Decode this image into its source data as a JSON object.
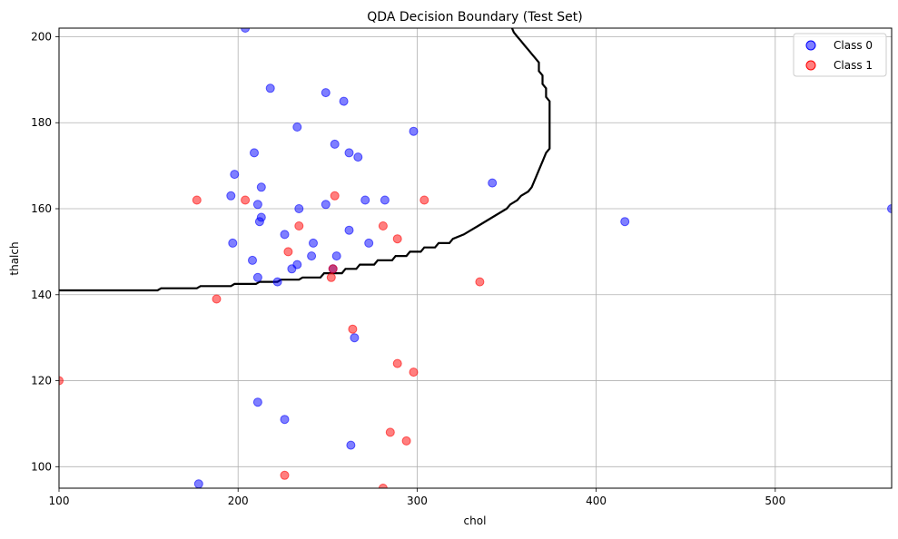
{
  "chart_data": {
    "type": "scatter",
    "title": "QDA Decision Boundary (Test Set)",
    "xlabel": "chol",
    "ylabel": "thalch",
    "xlim": [
      100,
      565
    ],
    "ylim": [
      95,
      202
    ],
    "xticks": [
      100,
      200,
      300,
      400,
      500
    ],
    "yticks": [
      100,
      120,
      140,
      160,
      180,
      200
    ],
    "grid": true,
    "legend_position": "top-right",
    "colors": {
      "class0": "#0000ff",
      "class1": "#ff0000",
      "boundary": "#000000",
      "grid": "#b0b0b0"
    },
    "series": [
      {
        "name": "Class 0",
        "color": "#0000ff",
        "points": [
          [
            204,
            202
          ],
          [
            218,
            188
          ],
          [
            249,
            187
          ],
          [
            259,
            185
          ],
          [
            233,
            179
          ],
          [
            298,
            178
          ],
          [
            254,
            175
          ],
          [
            209,
            173
          ],
          [
            262,
            173
          ],
          [
            267,
            172
          ],
          [
            198,
            168
          ],
          [
            342,
            166
          ],
          [
            213,
            165
          ],
          [
            196,
            163
          ],
          [
            271,
            162
          ],
          [
            282,
            162
          ],
          [
            211,
            161
          ],
          [
            249,
            161
          ],
          [
            234,
            160
          ],
          [
            565,
            160
          ],
          [
            213,
            158
          ],
          [
            212,
            157
          ],
          [
            416,
            157
          ],
          [
            262,
            155
          ],
          [
            226,
            154
          ],
          [
            197,
            152
          ],
          [
            242,
            152
          ],
          [
            273,
            152
          ],
          [
            241,
            149
          ],
          [
            255,
            149
          ],
          [
            208,
            148
          ],
          [
            233,
            147
          ],
          [
            230,
            146
          ],
          [
            253,
            146
          ],
          [
            211,
            144
          ],
          [
            222,
            143
          ],
          [
            265,
            130
          ],
          [
            211,
            115
          ],
          [
            226,
            111
          ],
          [
            263,
            105
          ],
          [
            178,
            96
          ]
        ]
      },
      {
        "name": "Class 1",
        "color": "#ff0000",
        "points": [
          [
            177,
            162
          ],
          [
            204,
            162
          ],
          [
            254,
            163
          ],
          [
            304,
            162
          ],
          [
            234,
            156
          ],
          [
            281,
            156
          ],
          [
            289,
            153
          ],
          [
            228,
            150
          ],
          [
            253,
            146
          ],
          [
            252,
            144
          ],
          [
            335,
            143
          ],
          [
            188,
            139
          ],
          [
            264,
            132
          ],
          [
            100,
            120
          ],
          [
            289,
            124
          ],
          [
            298,
            122
          ],
          [
            285,
            108
          ],
          [
            294,
            106
          ],
          [
            226,
            98
          ],
          [
            281,
            95
          ]
        ]
      }
    ],
    "decision_boundary": [
      [
        100,
        141
      ],
      [
        155,
        141
      ],
      [
        157,
        141.5
      ],
      [
        177,
        141.5
      ],
      [
        179,
        142
      ],
      [
        196,
        142
      ],
      [
        198,
        142.5
      ],
      [
        210,
        142.5
      ],
      [
        212,
        143
      ],
      [
        222,
        143
      ],
      [
        224,
        143.5
      ],
      [
        234,
        143.5
      ],
      [
        236,
        144
      ],
      [
        246,
        144
      ],
      [
        248,
        145
      ],
      [
        258,
        145
      ],
      [
        260,
        146
      ],
      [
        266,
        146
      ],
      [
        268,
        147
      ],
      [
        276,
        147
      ],
      [
        278,
        148
      ],
      [
        286,
        148
      ],
      [
        288,
        149
      ],
      [
        294,
        149
      ],
      [
        296,
        150
      ],
      [
        302,
        150
      ],
      [
        304,
        151
      ],
      [
        310,
        151
      ],
      [
        312,
        152
      ],
      [
        318,
        152
      ],
      [
        320,
        153
      ],
      [
        326,
        154
      ],
      [
        334,
        156
      ],
      [
        342,
        158
      ],
      [
        350,
        160
      ],
      [
        352,
        161
      ],
      [
        356,
        162
      ],
      [
        358,
        163
      ],
      [
        362,
        164
      ],
      [
        364,
        165
      ],
      [
        366,
        167
      ],
      [
        368,
        169
      ],
      [
        370,
        171
      ],
      [
        372,
        173
      ],
      [
        374,
        174
      ],
      [
        374,
        180
      ],
      [
        374,
        185
      ],
      [
        372,
        186
      ],
      [
        372,
        188
      ],
      [
        370,
        189
      ],
      [
        370,
        191
      ],
      [
        368,
        192
      ],
      [
        368,
        194
      ],
      [
        366,
        195
      ],
      [
        364,
        196
      ],
      [
        362,
        197
      ],
      [
        360,
        198
      ],
      [
        358,
        199
      ],
      [
        356,
        200
      ],
      [
        354,
        201
      ],
      [
        353,
        202
      ]
    ]
  }
}
